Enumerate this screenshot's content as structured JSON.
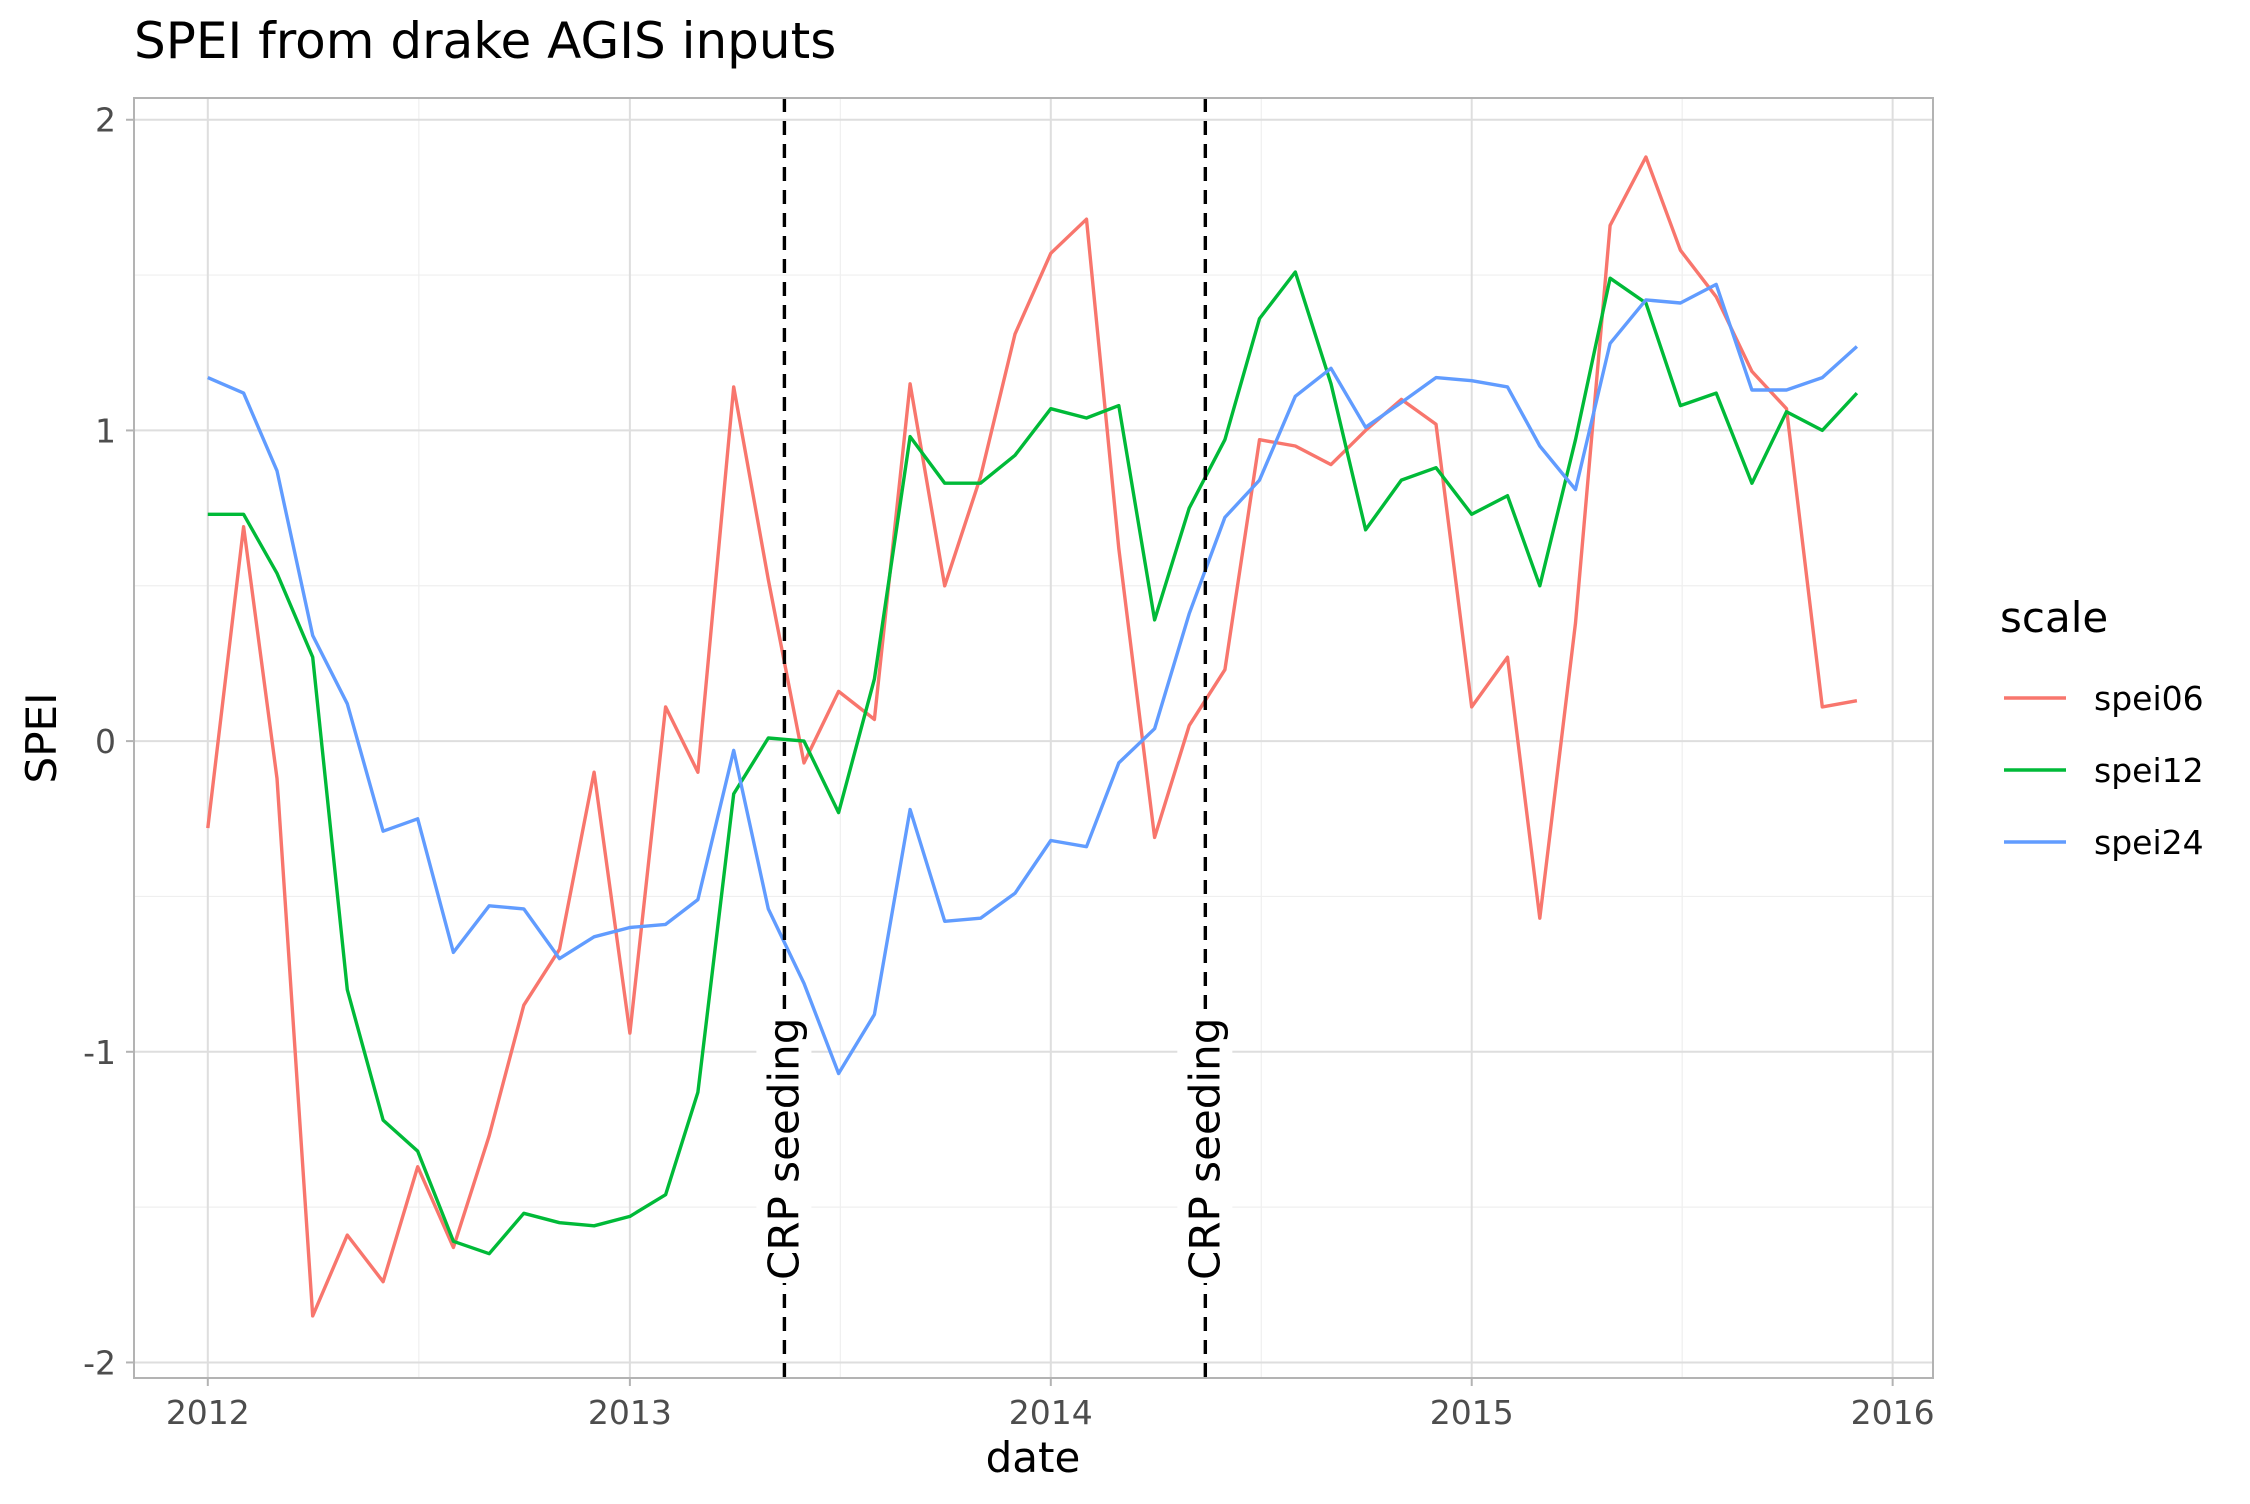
{
  "chart_data": {
    "type": "line",
    "title": "SPEI from drake AGIS inputs",
    "xlabel": "date",
    "ylabel": "SPEI",
    "xlim": [
      "2011-10-29",
      "2016-02-05"
    ],
    "ylim": [
      -2.05,
      2.07
    ],
    "x_ticks": [
      {
        "date": "2012-01-01",
        "label": "2012"
      },
      {
        "date": "2013-01-01",
        "label": "2013"
      },
      {
        "date": "2014-01-01",
        "label": "2014"
      },
      {
        "date": "2015-01-01",
        "label": "2015"
      },
      {
        "date": "2016-01-01",
        "label": "2016"
      }
    ],
    "y_ticks": [
      {
        "value": -2,
        "label": "-2"
      },
      {
        "value": -1,
        "label": "-1"
      },
      {
        "value": 0,
        "label": "0"
      },
      {
        "value": 1,
        "label": "1"
      },
      {
        "value": 2,
        "label": "2"
      }
    ],
    "grid": true,
    "legend": {
      "title": "scale",
      "position": "right"
    },
    "x": [
      "2012-01-01",
      "2012-02-01",
      "2012-03-01",
      "2012-04-01",
      "2012-05-01",
      "2012-06-01",
      "2012-07-01",
      "2012-08-01",
      "2012-09-01",
      "2012-10-01",
      "2012-11-01",
      "2012-12-01",
      "2013-01-01",
      "2013-02-01",
      "2013-03-01",
      "2013-04-01",
      "2013-05-01",
      "2013-06-01",
      "2013-07-01",
      "2013-08-01",
      "2013-09-01",
      "2013-10-01",
      "2013-11-01",
      "2013-12-01",
      "2014-01-01",
      "2014-02-01",
      "2014-03-01",
      "2014-04-01",
      "2014-05-01",
      "2014-06-01",
      "2014-07-01",
      "2014-08-01",
      "2014-09-01",
      "2014-10-01",
      "2014-11-01",
      "2014-12-01",
      "2015-01-01",
      "2015-02-01",
      "2015-03-01",
      "2015-04-01",
      "2015-05-01",
      "2015-06-01",
      "2015-07-01",
      "2015-08-01",
      "2015-09-01",
      "2015-10-01",
      "2015-11-01",
      "2015-12-01"
    ],
    "series": [
      {
        "name": "spei06",
        "color": "#F8766D",
        "values": [
          -0.28,
          0.69,
          -0.12,
          -1.85,
          -1.59,
          -1.74,
          -1.37,
          -1.63,
          -1.27,
          -0.85,
          -0.67,
          -0.1,
          -0.94,
          0.11,
          -0.1,
          1.14,
          0.52,
          -0.07,
          0.16,
          0.07,
          1.15,
          0.5,
          0.85,
          1.31,
          1.57,
          1.68,
          0.62,
          -0.31,
          0.05,
          0.23,
          0.97,
          0.95,
          0.89,
          1.0,
          1.1,
          1.02,
          0.11,
          0.27,
          -0.57,
          0.38,
          1.66,
          1.88,
          1.58,
          1.43,
          1.19,
          1.07,
          0.11,
          0.13
        ]
      },
      {
        "name": "spei12",
        "color": "#00BA38",
        "values": [
          0.73,
          0.73,
          0.54,
          0.27,
          -0.8,
          -1.22,
          -1.32,
          -1.61,
          -1.65,
          -1.52,
          -1.55,
          -1.56,
          -1.53,
          -1.46,
          -1.13,
          -0.17,
          0.01,
          0.0,
          -0.23,
          0.2,
          0.98,
          0.83,
          0.83,
          0.92,
          1.07,
          1.04,
          1.08,
          0.39,
          0.75,
          0.97,
          1.36,
          1.51,
          1.15,
          0.68,
          0.84,
          0.88,
          0.73,
          0.79,
          0.5,
          0.97,
          1.49,
          1.41,
          1.08,
          1.12,
          0.83,
          1.06,
          1.0,
          1.12
        ]
      },
      {
        "name": "spei24",
        "color": "#619CFF",
        "values": [
          1.17,
          1.12,
          0.87,
          0.34,
          0.12,
          -0.29,
          -0.25,
          -0.68,
          -0.53,
          -0.54,
          -0.7,
          -0.63,
          -0.6,
          -0.59,
          -0.51,
          -0.03,
          -0.54,
          -0.78,
          -1.07,
          -0.88,
          -0.22,
          -0.58,
          -0.57,
          -0.49,
          -0.32,
          -0.34,
          -0.07,
          0.04,
          0.41,
          0.72,
          0.84,
          1.11,
          1.2,
          1.01,
          1.09,
          1.17,
          1.16,
          1.14,
          0.95,
          0.81,
          1.28,
          1.42,
          1.41,
          1.47,
          1.13,
          1.13,
          1.17,
          1.27
        ]
      }
    ],
    "vlines": [
      {
        "date": "2013-05-15",
        "label": "CRP seeding"
      },
      {
        "date": "2014-05-15",
        "label": "CRP seeding"
      }
    ]
  }
}
